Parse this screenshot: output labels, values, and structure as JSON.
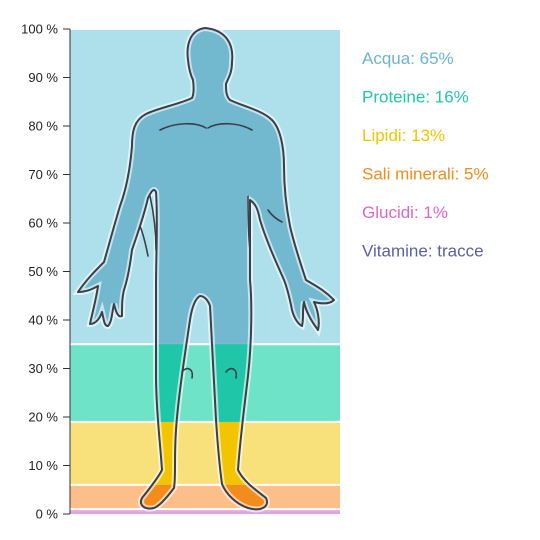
{
  "chart_data": {
    "type": "bar",
    "orientation": "vertical-stacked",
    "title": "",
    "xlabel": "",
    "ylabel": "",
    "ylim": [
      0,
      100
    ],
    "y_ticks": [
      0,
      10,
      20,
      30,
      40,
      50,
      60,
      70,
      80,
      90,
      100
    ],
    "y_tick_labels": [
      "0 %",
      "10 %",
      "20 %",
      "30 %",
      "40 %",
      "50 %",
      "60 %",
      "70 %",
      "80 %",
      "90 %",
      "100 %"
    ],
    "grid": false,
    "legend_position": "right",
    "series": [
      {
        "name": "Vitamine",
        "label": "Vitamine: tracce",
        "value": 0,
        "color": "#5b5ea6",
        "fill": "#d9a8e0"
      },
      {
        "name": "Glucidi",
        "label": "Glucidi: 1%",
        "value": 1,
        "color": "#e066c4",
        "fill": "#e8a7df"
      },
      {
        "name": "Sali minerali",
        "label": "Sali minerali: 5%",
        "value": 5,
        "color": "#f28c1c",
        "fill": "#fdbf8a"
      },
      {
        "name": "Lipidi",
        "label": "Lipidi: 13%",
        "value": 13,
        "color": "#f2c500",
        "fill": "#f8e07a"
      },
      {
        "name": "Proteine",
        "label": "Proteine: 16%",
        "value": 16,
        "color": "#1fc7a8",
        "fill": "#6fe3c8"
      },
      {
        "name": "Acqua",
        "label": "Acqua: 65%",
        "value": 65,
        "color": "#6cb4cc",
        "fill": "#aee0eb"
      }
    ],
    "legend_order": [
      "Acqua",
      "Proteine",
      "Lipidi",
      "Sali minerali",
      "Glucidi",
      "Vitamine"
    ]
  }
}
